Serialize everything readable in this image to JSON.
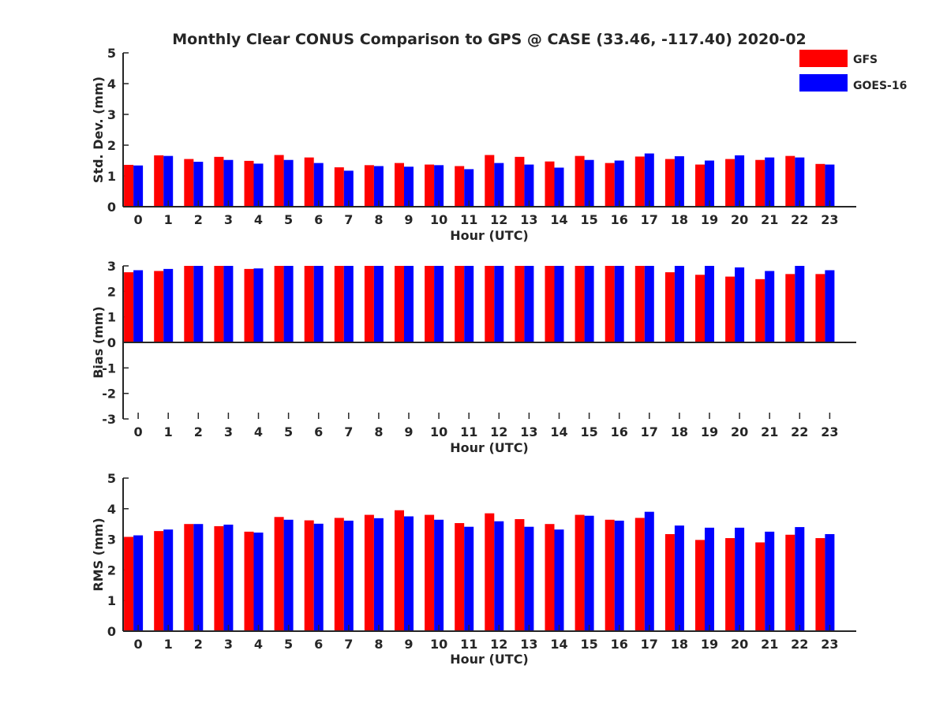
{
  "title": "Monthly Clear CONUS Comparison to GPS @ CASE (33.46, -117.40) 2020-02",
  "legend": [
    {
      "name": "GFS",
      "color": "#ff0000"
    },
    {
      "name": "GOES-16",
      "color": "#0000ff"
    }
  ],
  "chart_data": [
    {
      "type": "bar",
      "ylabel": "Std. Dev. (mm)",
      "xlabel": "Hour (UTC)",
      "ylim": [
        0,
        5
      ],
      "yticks": [
        "0",
        "1",
        "2",
        "3",
        "4",
        "5"
      ],
      "categories": [
        "0",
        "1",
        "2",
        "3",
        "4",
        "5",
        "6",
        "7",
        "8",
        "9",
        "10",
        "11",
        "12",
        "13",
        "14",
        "15",
        "16",
        "17",
        "18",
        "19",
        "20",
        "21",
        "22",
        "23"
      ],
      "series": [
        {
          "name": "GFS",
          "values": [
            1.36,
            1.67,
            1.55,
            1.62,
            1.49,
            1.68,
            1.6,
            1.28,
            1.35,
            1.42,
            1.37,
            1.32,
            1.68,
            1.62,
            1.47,
            1.65,
            1.42,
            1.63,
            1.55,
            1.37,
            1.55,
            1.52,
            1.65,
            1.39
          ]
        },
        {
          "name": "GOES-16",
          "values": [
            1.34,
            1.65,
            1.46,
            1.52,
            1.4,
            1.52,
            1.42,
            1.17,
            1.32,
            1.3,
            1.35,
            1.22,
            1.42,
            1.37,
            1.27,
            1.52,
            1.5,
            1.73,
            1.64,
            1.5,
            1.67,
            1.6,
            1.6,
            1.37
          ]
        }
      ]
    },
    {
      "type": "bar",
      "ylabel": "Bias (mm)",
      "xlabel": "Hour (UTC)",
      "ylim": [
        -3,
        3
      ],
      "yticks": [
        "-3",
        "-2",
        "-1",
        "0",
        "1",
        "2",
        "3"
      ],
      "categories": [
        "0",
        "1",
        "2",
        "3",
        "4",
        "5",
        "6",
        "7",
        "8",
        "9",
        "10",
        "11",
        "12",
        "13",
        "14",
        "15",
        "16",
        "17",
        "18",
        "19",
        "20",
        "21",
        "22",
        "23"
      ],
      "series": [
        {
          "name": "GFS",
          "values": [
            2.75,
            2.8,
            3.0,
            3.0,
            2.88,
            3.0,
            3.0,
            3.0,
            3.0,
            3.0,
            3.0,
            3.0,
            3.0,
            3.0,
            3.0,
            3.0,
            3.0,
            3.0,
            2.75,
            2.65,
            2.58,
            2.48,
            2.68,
            2.68
          ]
        },
        {
          "name": "GOES-16",
          "values": [
            2.83,
            2.88,
            3.0,
            3.0,
            2.9,
            3.0,
            3.0,
            3.0,
            3.0,
            3.0,
            3.0,
            3.0,
            3.0,
            3.0,
            3.0,
            3.0,
            3.0,
            3.0,
            3.0,
            3.0,
            2.94,
            2.8,
            3.0,
            2.83
          ]
        }
      ]
    },
    {
      "type": "bar",
      "ylabel": "RMS (mm)",
      "xlabel": "Hour (UTC)",
      "ylim": [
        0,
        5
      ],
      "yticks": [
        "0",
        "1",
        "2",
        "3",
        "4",
        "5"
      ],
      "categories": [
        "0",
        "1",
        "2",
        "3",
        "4",
        "5",
        "6",
        "7",
        "8",
        "9",
        "10",
        "11",
        "12",
        "13",
        "14",
        "15",
        "16",
        "17",
        "18",
        "19",
        "20",
        "21",
        "22",
        "23"
      ],
      "series": [
        {
          "name": "GFS",
          "values": [
            3.08,
            3.27,
            3.5,
            3.43,
            3.25,
            3.73,
            3.62,
            3.7,
            3.8,
            3.95,
            3.8,
            3.53,
            3.85,
            3.66,
            3.5,
            3.8,
            3.64,
            3.7,
            3.17,
            2.98,
            3.04,
            2.9,
            3.15,
            3.04
          ]
        },
        {
          "name": "GOES-16",
          "values": [
            3.13,
            3.32,
            3.5,
            3.48,
            3.22,
            3.64,
            3.51,
            3.61,
            3.69,
            3.75,
            3.64,
            3.41,
            3.59,
            3.41,
            3.32,
            3.77,
            3.61,
            3.9,
            3.45,
            3.38,
            3.38,
            3.25,
            3.4,
            3.17
          ]
        }
      ]
    }
  ]
}
